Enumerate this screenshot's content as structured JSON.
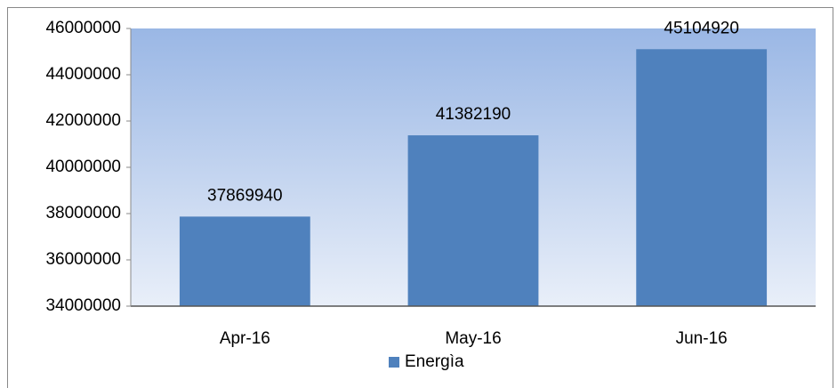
{
  "chart_data": {
    "type": "bar",
    "categories": [
      "Apr-16",
      "May-16",
      "Jun-16"
    ],
    "series": [
      {
        "name": "Energìa",
        "color": "#4f81bd",
        "values": [
          37869940,
          41382190,
          45104920
        ]
      }
    ],
    "ylim": [
      34000000,
      46000000
    ],
    "yticks": [
      34000000,
      36000000,
      38000000,
      40000000,
      42000000,
      44000000,
      46000000
    ],
    "legend": "bottom"
  }
}
